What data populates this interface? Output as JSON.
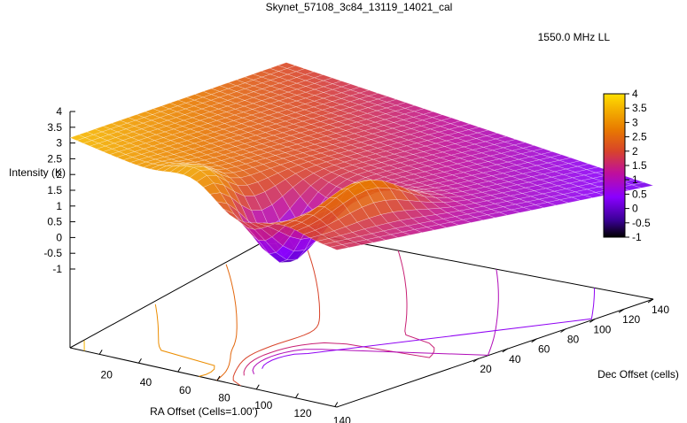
{
  "chart_data": {
    "type": "surface3d",
    "title": "Skynet_57108_3c84_13119_14021_cal",
    "legend": "1550.0 MHz LL",
    "legend_position": "top-right",
    "xlabel": "RA Offset (Cells=1.00')",
    "ylabel": "Dec Offset (cells)",
    "zlabel": "Intensity (K)",
    "x_ticks": [
      20,
      40,
      60,
      80,
      100,
      120,
      140
    ],
    "y_ticks": [
      20,
      40,
      60,
      80,
      100,
      120,
      140
    ],
    "z_ticks": [
      4,
      3.5,
      3,
      2.5,
      2,
      1.5,
      1,
      0.5,
      0,
      -0.5,
      -1
    ],
    "colorbar_ticks": [
      4,
      3.5,
      3,
      2.5,
      2,
      1.5,
      1,
      0.5,
      0,
      -0.5,
      -1
    ],
    "zlim": [
      -1,
      4
    ],
    "palette": [
      "#000000",
      "#3b0098",
      "#8a00ff",
      "#c0109a",
      "#d8442a",
      "#e87a00",
      "#f5b400",
      "#ffe000"
    ],
    "grid": false
  }
}
